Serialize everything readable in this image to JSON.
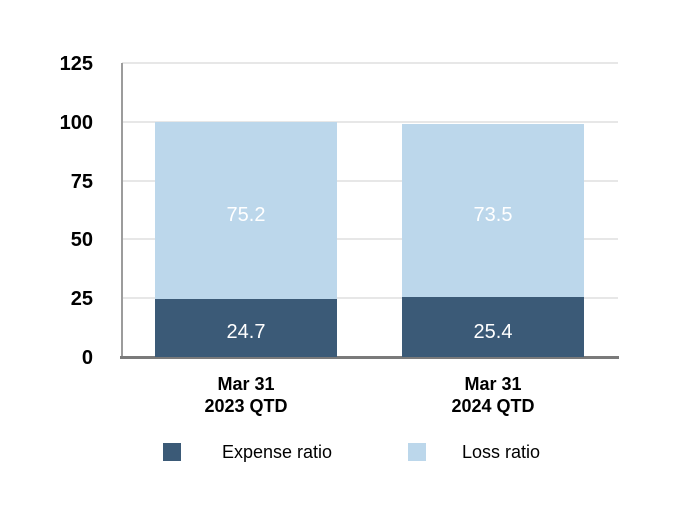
{
  "chart_data": {
    "type": "bar",
    "stacked": true,
    "title": "",
    "xlabel": "",
    "ylabel": "",
    "categories": [
      "Mar 31 2023 QTD",
      "Mar 31 2024 QTD"
    ],
    "category_lines": [
      [
        "Mar 31",
        "2023 QTD"
      ],
      [
        "Mar 31",
        "2024 QTD"
      ]
    ],
    "series": [
      {
        "name": "Expense ratio",
        "values": [
          24.7,
          25.4
        ],
        "color": "#3B5A77",
        "label_color": "#FFFFFF"
      },
      {
        "name": "Loss ratio",
        "values": [
          75.2,
          73.5
        ],
        "color": "#BCD7EB",
        "label_color": "#FFFFFF"
      }
    ],
    "stack_order_bottom_to_top": [
      "Expense ratio",
      "Loss ratio"
    ],
    "totals": [
      99.9,
      98.9
    ],
    "ylim": [
      0,
      125
    ],
    "y_ticks": [
      0,
      25,
      50,
      75,
      100,
      125
    ],
    "grid": true,
    "legend_position": "bottom"
  },
  "legend": {
    "items": [
      {
        "label": "Expense ratio",
        "color": "#3B5A77"
      },
      {
        "label": "Loss ratio",
        "color": "#BCD7EB"
      }
    ]
  },
  "colors": {
    "expense_ratio": "#3B5A77",
    "loss_ratio": "#BCD7EB",
    "gridline": "#E7E7E7",
    "y_axis_line": "#9C9C9C",
    "x_axis_line": "#7A7A7A",
    "tick_label": "#000000",
    "bar_value_label": "#FFFFFF",
    "background": "#FFFFFF"
  }
}
